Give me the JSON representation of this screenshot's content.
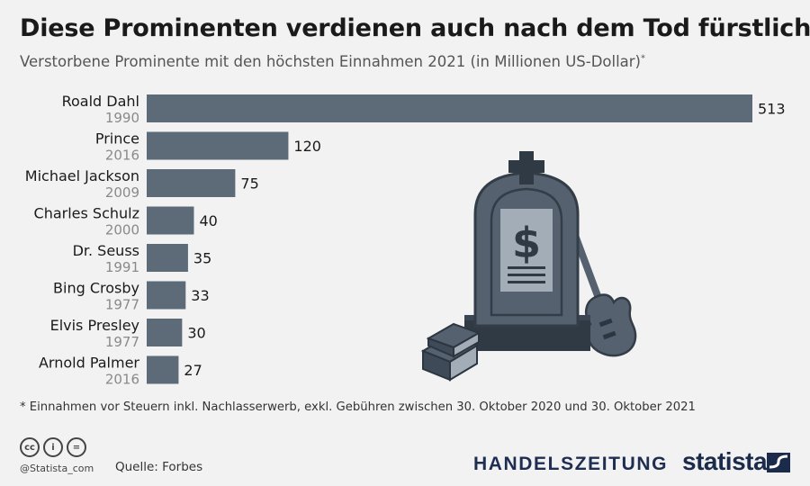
{
  "title": "Diese Prominenten verdienen auch nach dem Tod fürstlich",
  "subtitle": "Verstorbene Prominente mit den höchsten Einnahmen 2021 (in Millionen US-Dollar)",
  "subtitle_mark": "*",
  "footnote": "* Einnahmen vor Steuern inkl. Nachlasserwerb, exkl. Gebühren zwischen 30. Oktober 2020 und 30. Oktober 2021",
  "handle": "@Statista_com",
  "source": "Quelle: Forbes",
  "partner_logo": "HANDELSZEITUNG",
  "brand": "statista",
  "license_icons": [
    "cc-icon",
    "person-icon",
    "equals-icon"
  ],
  "license_glyphs": [
    "cc",
    "i",
    "="
  ],
  "colors": {
    "bar": "#5d6b79",
    "illustration": "#55616f",
    "background": "#f2f2f2"
  },
  "chart_data": {
    "type": "bar",
    "orientation": "horizontal",
    "title": "Diese Prominenten verdienen auch nach dem Tod fürstlich",
    "subtitle": "Verstorbene Prominente mit den höchsten Einnahmen 2021 (in Millionen US-Dollar)",
    "categories": [
      "Roald Dahl",
      "Prince",
      "Michael Jackson",
      "Charles Schulz",
      "Dr. Seuss",
      "Bing Crosby",
      "Elvis Presley",
      "Arnold Palmer"
    ],
    "years": [
      "1990",
      "2016",
      "2009",
      "2000",
      "1991",
      "1977",
      "1977",
      "2016"
    ],
    "values": [
      513,
      120,
      75,
      40,
      35,
      33,
      30,
      27
    ],
    "unit": "Millionen US-Dollar",
    "xlabel": "",
    "ylabel": "",
    "xlim": [
      0,
      513
    ],
    "grid": false,
    "legend": "none"
  }
}
